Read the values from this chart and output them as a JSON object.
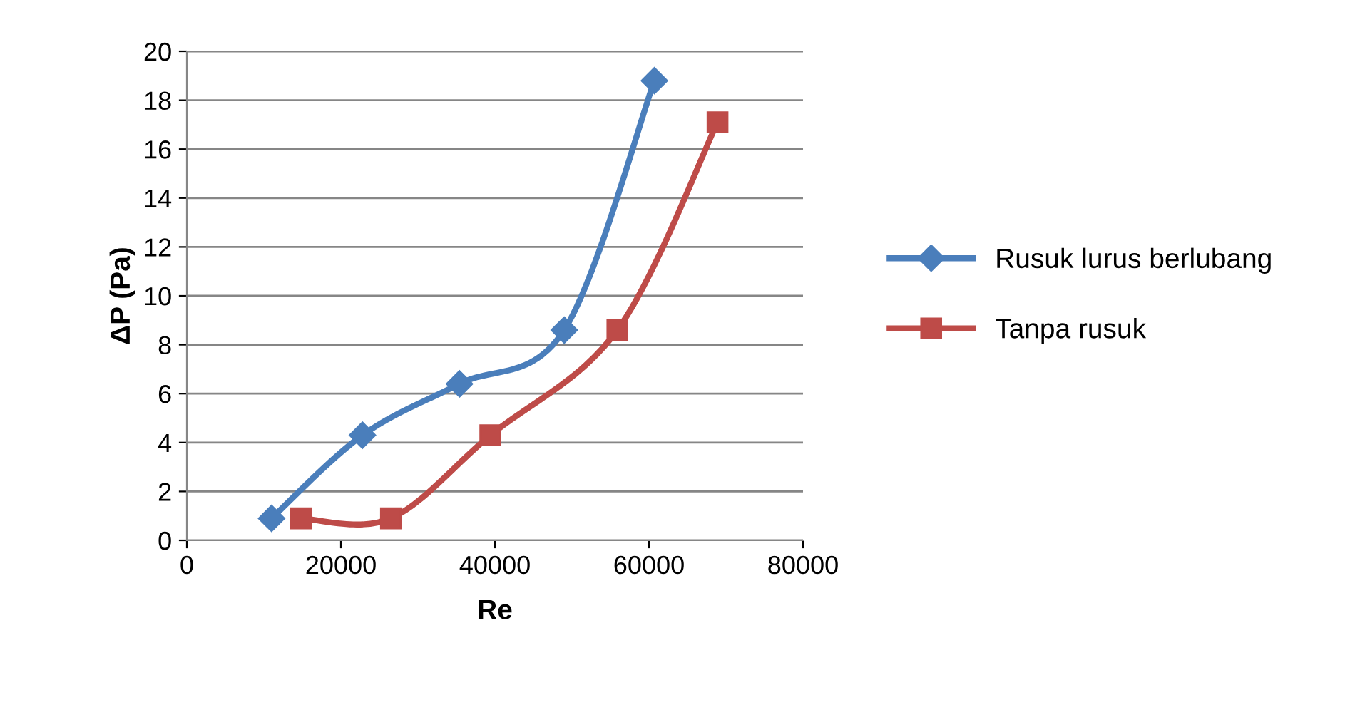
{
  "chart_data": {
    "type": "line",
    "xlabel": "Re",
    "ylabel": "ΔP (Pa)",
    "xlim": [
      0,
      80000
    ],
    "xticks": [
      0,
      20000,
      40000,
      60000,
      80000
    ],
    "ylim": [
      0,
      20
    ],
    "yticks": [
      0,
      2,
      4,
      6,
      8,
      10,
      12,
      14,
      16,
      18,
      20
    ],
    "grid": "y",
    "legend": "right",
    "series": [
      {
        "name": "Rusuk lurus berlubang",
        "color": "#4a7ebb",
        "marker": "diamond",
        "x": [
          11000,
          22800,
          35400,
          49000,
          60700
        ],
        "values": [
          0.9,
          4.3,
          6.4,
          8.6,
          18.8
        ]
      },
      {
        "name": "Tanpa rusuk",
        "color": "#be4b48",
        "marker": "square",
        "x": [
          14800,
          26500,
          39400,
          55900,
          68900
        ],
        "values": [
          0.9,
          0.9,
          4.3,
          8.6,
          17.1
        ]
      }
    ]
  }
}
